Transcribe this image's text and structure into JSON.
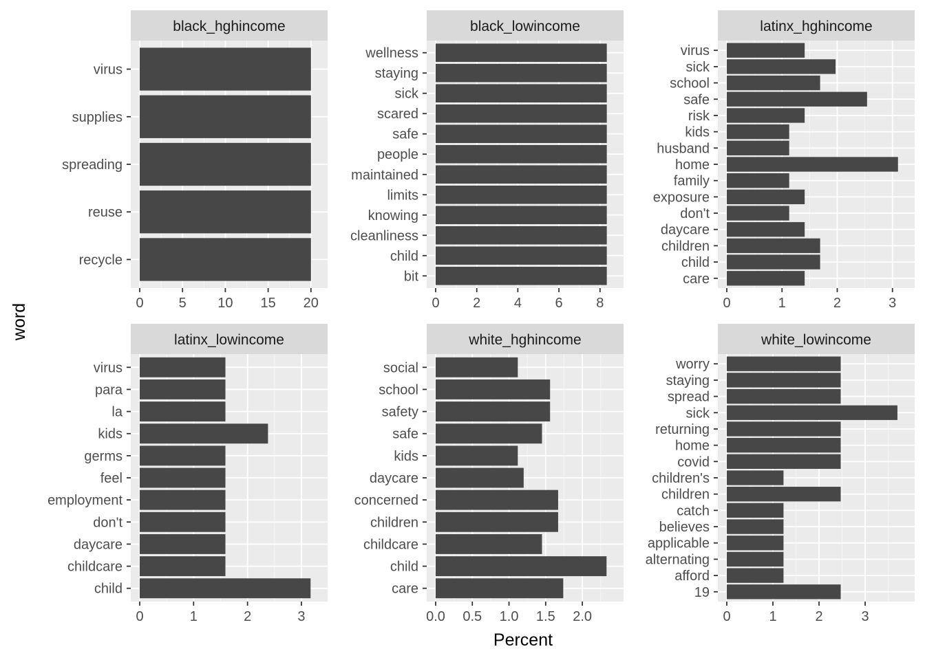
{
  "colors": {
    "panel_background": "#ebebeb",
    "grid_major": "#ffffff",
    "strip_background": "#d9d9d9",
    "bar_fill": "#474747",
    "tick_color": "#333333",
    "tick_label_color": "#4d4d4d"
  },
  "chart_data": {
    "type": "bar",
    "orientation": "horizontal",
    "xlabel": "Percent",
    "ylabel": "word",
    "grid": true,
    "facets": [
      {
        "name": "black_hghincome",
        "categories": [
          "recycle",
          "reuse",
          "spreading",
          "supplies",
          "virus"
        ],
        "values": [
          20,
          20,
          20,
          20,
          20
        ],
        "xlim": [
          0,
          20.9
        ],
        "xticks": [
          0,
          5,
          10,
          15,
          20
        ],
        "xtick_labels": [
          "0",
          "5",
          "10",
          "15",
          "20"
        ]
      },
      {
        "name": "black_lowincome",
        "categories": [
          "bit",
          "child",
          "cleanliness",
          "knowing",
          "limits",
          "maintained",
          "people",
          "safe",
          "scared",
          "sick",
          "staying",
          "wellness"
        ],
        "values": [
          8.33,
          8.33,
          8.33,
          8.33,
          8.33,
          8.33,
          8.33,
          8.33,
          8.33,
          8.33,
          8.33,
          8.33
        ],
        "xlim": [
          0,
          8.71
        ],
        "xticks": [
          0,
          2,
          4,
          6,
          8
        ],
        "xtick_labels": [
          "0",
          "2",
          "4",
          "6",
          "8"
        ]
      },
      {
        "name": "latinx_hghincome",
        "categories": [
          "care",
          "child",
          "children",
          "daycare",
          "don't",
          "exposure",
          "family",
          "home",
          "husband",
          "kids",
          "risk",
          "safe",
          "school",
          "sick",
          "virus"
        ],
        "values": [
          1.41,
          1.69,
          1.69,
          1.41,
          1.13,
          1.41,
          1.13,
          3.1,
          1.13,
          1.13,
          1.41,
          2.54,
          1.69,
          1.97,
          1.41
        ],
        "xlim": [
          0,
          3.24
        ],
        "xticks": [
          0,
          1,
          2,
          3
        ],
        "xtick_labels": [
          "0",
          "1",
          "2",
          "3"
        ]
      },
      {
        "name": "latinx_lowincome",
        "categories": [
          "child",
          "childcare",
          "daycare",
          "don't",
          "employment",
          "feel",
          "germs",
          "kids",
          "la",
          "para",
          "virus"
        ],
        "values": [
          3.17,
          1.59,
          1.59,
          1.59,
          1.59,
          1.59,
          1.59,
          2.38,
          1.59,
          1.59,
          1.59
        ],
        "xlim": [
          0,
          3.32
        ],
        "xticks": [
          0,
          1,
          2,
          3
        ],
        "xtick_labels": [
          "0",
          "1",
          "2",
          "3"
        ]
      },
      {
        "name": "white_hghincome",
        "categories": [
          "care",
          "child",
          "childcare",
          "children",
          "concerned",
          "daycare",
          "kids",
          "safe",
          "safety",
          "school",
          "social"
        ],
        "values": [
          1.74,
          2.33,
          1.45,
          1.67,
          1.67,
          1.2,
          1.12,
          1.45,
          1.56,
          1.56,
          1.12
        ],
        "xlim": [
          0,
          2.44
        ],
        "xticks": [
          0,
          0.5,
          1,
          1.5,
          2
        ],
        "xtick_labels": [
          "0.0",
          "0.5",
          "1.0",
          "1.5",
          "2.0"
        ]
      },
      {
        "name": "white_lowincome",
        "categories": [
          "19",
          "afford",
          "alternating",
          "applicable",
          "believes",
          "catch",
          "children",
          "children's",
          "covid",
          "home",
          "returning",
          "sick",
          "spread",
          "staying",
          "worry"
        ],
        "values": [
          2.47,
          1.23,
          1.23,
          1.23,
          1.23,
          1.23,
          2.47,
          1.23,
          2.47,
          2.47,
          2.47,
          3.7,
          2.47,
          2.47,
          2.47
        ],
        "xlim": [
          0,
          3.88
        ],
        "xticks": [
          0,
          1,
          2,
          3
        ],
        "xtick_labels": [
          "0",
          "1",
          "2",
          "3"
        ]
      }
    ]
  }
}
